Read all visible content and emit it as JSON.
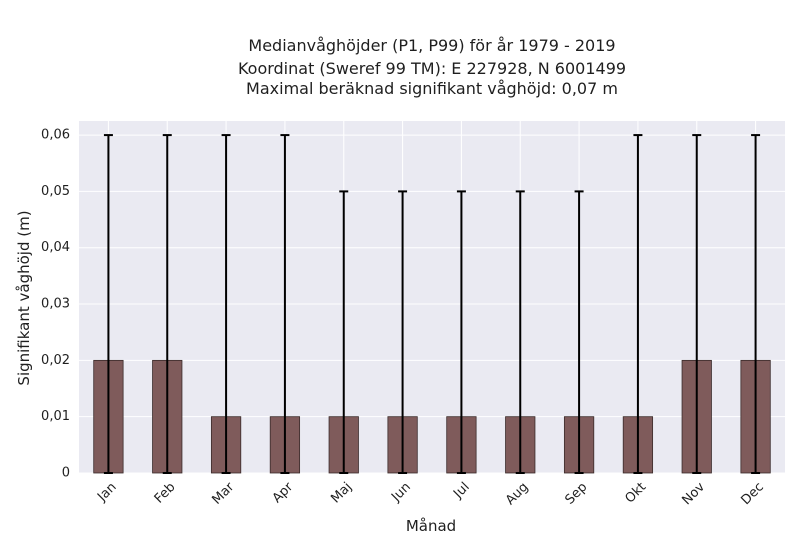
{
  "chart_data": {
    "type": "bar",
    "title_lines": [
      "Medianvåghöjder (P1, P99) för år 1979 - 2019",
      "Koordinat (Sweref 99 TM): E 227928, N 6001499",
      "Maximal beräknad signifikant våghöjd: 0,07 m"
    ],
    "xlabel": "Månad",
    "ylabel": "Signifikant våghöjd (m)",
    "categories": [
      "Jan",
      "Feb",
      "Mar",
      "Apr",
      "Maj",
      "Jun",
      "Jul",
      "Aug",
      "Sep",
      "Okt",
      "Nov",
      "Dec"
    ],
    "values": [
      0.02,
      0.02,
      0.01,
      0.01,
      0.01,
      0.01,
      0.01,
      0.01,
      0.01,
      0.01,
      0.02,
      0.02
    ],
    "error_low": [
      0,
      0,
      0,
      0,
      0,
      0,
      0,
      0,
      0,
      0,
      0,
      0
    ],
    "error_high": [
      0.06,
      0.06,
      0.06,
      0.06,
      0.05,
      0.05,
      0.05,
      0.05,
      0.05,
      0.06,
      0.06,
      0.06
    ],
    "ylim": [
      0,
      0.0625
    ],
    "yticks": [
      0,
      0.01,
      0.02,
      0.03,
      0.04,
      0.05,
      0.06
    ],
    "ytick_labels": [
      "0",
      "0,01",
      "0,02",
      "0,03",
      "0,04",
      "0,05",
      "0,06"
    ],
    "grid": true,
    "colors": {
      "bar": "#7f5b5b",
      "bar_edge": "#3a2a2a",
      "error_bar": "#000000",
      "plot_background": "#eaeaf2",
      "grid": "#ffffff"
    }
  }
}
